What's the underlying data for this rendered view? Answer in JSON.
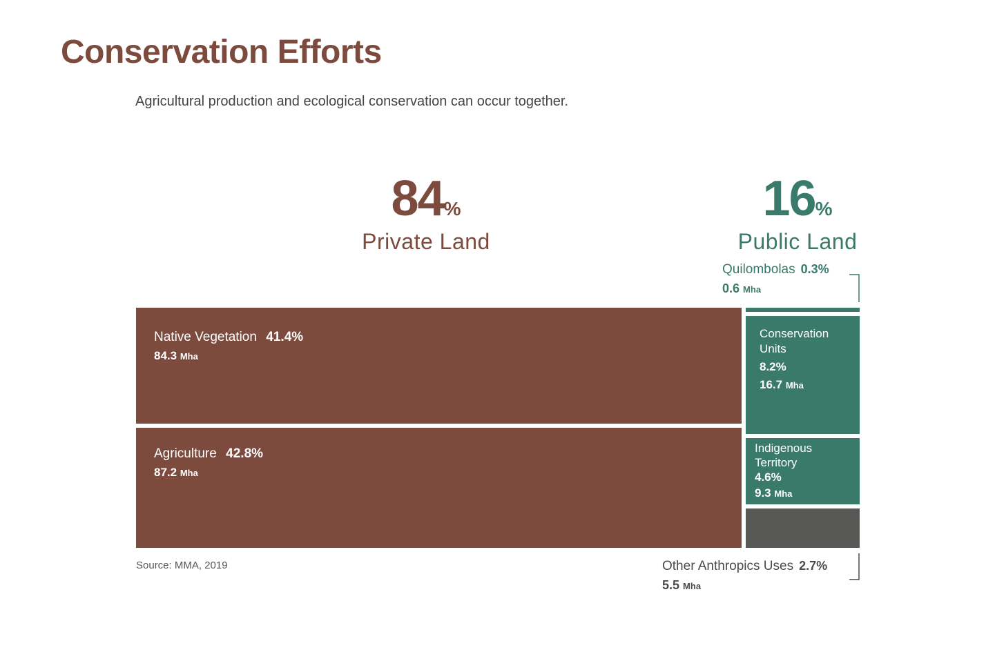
{
  "title": "Conservation Efforts",
  "subtitle": "Agricultural production and ecological conservation can occur together.",
  "source": "Source: MMA, 2019",
  "unit": "Mha",
  "colors": {
    "private": "#7d4b3e",
    "public": "#3a7a6a",
    "other": "#575756",
    "text_muted": "#444444"
  },
  "chart_data": {
    "type": "treemap",
    "title": "Conservation Efforts",
    "groups": [
      {
        "name": "Private Land",
        "value": "84",
        "pct_symbol": "%",
        "items": [
          {
            "name": "Native Vegetation",
            "pct": "41.4%",
            "area": "84.3",
            "area_value": 84.3
          },
          {
            "name": "Agriculture",
            "pct": "42.8%",
            "area": "87.2",
            "area_value": 87.2
          }
        ]
      },
      {
        "name": "Public Land",
        "value": "16",
        "pct_symbol": "%",
        "items": [
          {
            "name": "Quilombolas",
            "pct": "0.3%",
            "area": "0.6",
            "area_value": 0.6
          },
          {
            "name_line1": "Conservation",
            "name_line2": "Units",
            "pct": "8.2%",
            "area": "16.7",
            "area_value": 16.7
          },
          {
            "name_line1": "Indigenous",
            "name_line2": "Territory",
            "pct": "4.6%",
            "area": "9.3",
            "area_value": 9.3
          },
          {
            "name": "Other Anthropics Uses",
            "pct": "2.7%",
            "area": "5.5",
            "area_value": 5.5
          }
        ]
      }
    ]
  }
}
